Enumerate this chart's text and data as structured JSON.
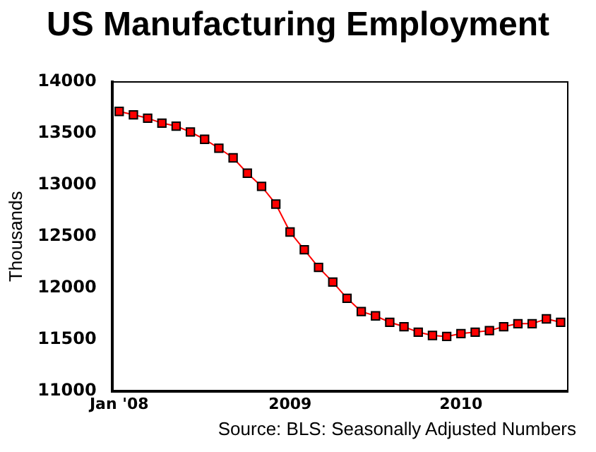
{
  "chart_data": {
    "type": "line",
    "title": "US Manufacturing Employment",
    "ylabel": "Thousands",
    "annotations": [
      "Source: BLS: Seasonally Adjusted Numbers"
    ],
    "categories": [
      "Jan '08",
      null,
      null,
      null,
      null,
      null,
      null,
      null,
      null,
      null,
      null,
      null,
      "2009",
      null,
      null,
      null,
      null,
      null,
      null,
      null,
      null,
      null,
      null,
      null,
      "2010",
      null,
      null,
      null,
      null,
      null,
      null,
      null
    ],
    "series": [
      {
        "color": "#ff0000",
        "values": [
          13714,
          13681,
          13648,
          13600,
          13571,
          13514,
          13443,
          13357,
          13263,
          13114,
          12986,
          12814,
          12543,
          12371,
          12200,
          12057,
          11900,
          11771,
          11729,
          11667,
          11624,
          11571,
          11539,
          11529,
          11557,
          11571,
          11586,
          11624,
          11653,
          11653,
          11700,
          11667
        ]
      }
    ],
    "ylim": [
      11000,
      14000
    ],
    "yticks": [
      11000,
      11500,
      12000,
      12500,
      13000,
      13500,
      14000
    ],
    "grid": false,
    "legend": false,
    "marker": "square",
    "line_style": "solid"
  }
}
